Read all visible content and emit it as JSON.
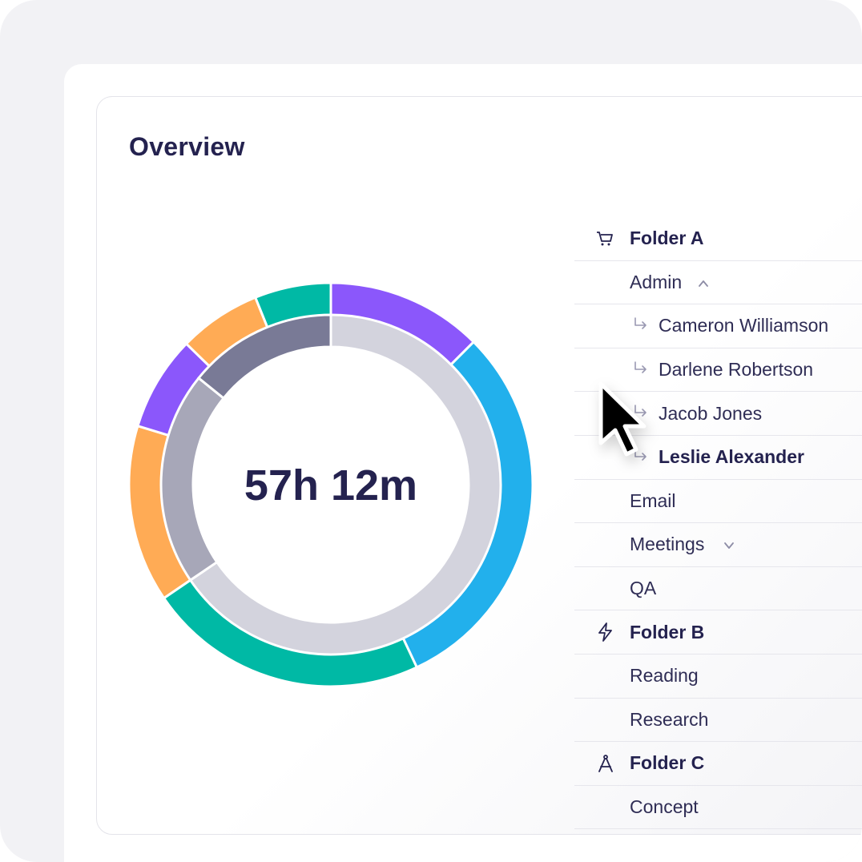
{
  "title": "Overview",
  "total_time": "57h 12m",
  "list": [
    {
      "kind": "folder",
      "label": "Folder A",
      "icon": "cart-icon"
    },
    {
      "kind": "sub",
      "label": "Admin",
      "chevron": "chevron-up-icon"
    },
    {
      "kind": "person",
      "label": "Cameron Williamson"
    },
    {
      "kind": "person",
      "label": "Darlene Robertson"
    },
    {
      "kind": "person",
      "label": "Jacob Jones"
    },
    {
      "kind": "person",
      "label": "Leslie Alexander",
      "bold": true
    },
    {
      "kind": "sub",
      "label": "Email"
    },
    {
      "kind": "sub",
      "label": "Meetings",
      "chevron": "chevron-down-icon"
    },
    {
      "kind": "sub",
      "label": "QA"
    },
    {
      "kind": "folder",
      "label": "Folder B",
      "icon": "lightning-icon"
    },
    {
      "kind": "sub",
      "label": "Reading"
    },
    {
      "kind": "sub",
      "label": "Research"
    },
    {
      "kind": "folder",
      "label": "Folder C",
      "icon": "compass-icon"
    },
    {
      "kind": "sub",
      "label": "Concept"
    }
  ],
  "colors": {
    "purple": "#8b57fb",
    "blue": "#22b0ec",
    "teal": "#00b9a5",
    "orange": "#ffab55",
    "inner_light": "#d3d3dd",
    "inner_mid": "#a7a7b8",
    "inner_dark": "#797a96",
    "text": "#24224f"
  },
  "chart_data": {
    "type": "donut",
    "outer_ring": [
      {
        "color": "purple",
        "percent": 12.5
      },
      {
        "color": "blue",
        "percent": 30.5
      },
      {
        "color": "teal",
        "percent": 22.5
      },
      {
        "color": "orange",
        "percent": 14.2
      },
      {
        "color": "purple",
        "percent": 7.6
      },
      {
        "color": "orange",
        "percent": 6.6
      },
      {
        "color": "teal",
        "percent": 6.1
      }
    ],
    "inner_ring": [
      {
        "color": "inner_light",
        "percent": 65.5
      },
      {
        "color": "inner_mid",
        "percent": 20.3
      },
      {
        "color": "inner_dark",
        "percent": 14.2
      }
    ]
  }
}
